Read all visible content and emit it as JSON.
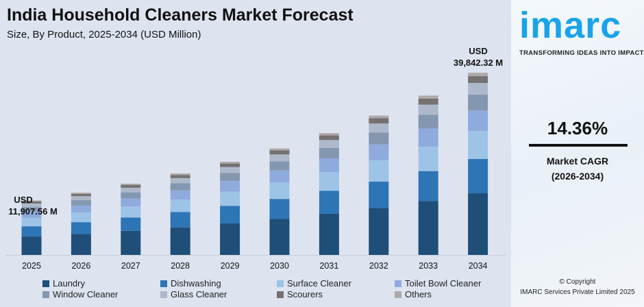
{
  "title": "India Household Cleaners Market Forecast",
  "subtitle": "Size, By Product, 2025-2034 (USD Million)",
  "brand": {
    "logo": "imarc",
    "tagline": "TRANSFORMING IDEAS INTO IMPACT"
  },
  "cagr": {
    "value": "14.36%",
    "label": "Market CAGR",
    "period": "(2026-2034)"
  },
  "copyright": {
    "line1": "© Copyright",
    "line2": "IMARC Services Private Limited 2025"
  },
  "annotations": {
    "first": {
      "line1": "USD",
      "line2": "11,907.56 M"
    },
    "last": {
      "line1": "USD",
      "line2": "39,842.32 M"
    }
  },
  "chart_data": {
    "type": "bar",
    "stacked": true,
    "categories": [
      "2025",
      "2026",
      "2027",
      "2028",
      "2029",
      "2030",
      "2031",
      "2032",
      "2033",
      "2034"
    ],
    "ylim": [
      0,
      40000
    ],
    "grid": false,
    "legend_position": "bottom",
    "series": [
      {
        "name": "Laundry",
        "color": "#1f4e79",
        "values": [
          4025,
          4603,
          5264,
          6020,
          6884,
          7873,
          9004,
          10296,
          11775,
          13480
        ]
      },
      {
        "name": "Dishwashing",
        "color": "#2e75b6",
        "values": [
          2239,
          2560,
          2928,
          3348,
          3829,
          4379,
          5008,
          5727,
          6550,
          7490
        ]
      },
      {
        "name": "Surface Cleaner",
        "color": "#9dc3e6",
        "values": [
          1834,
          2097,
          2398,
          2743,
          3137,
          3587,
          4102,
          4691,
          5365,
          6140
        ]
      },
      {
        "name": "Toilet Bowl Cleaner",
        "color": "#8faadc",
        "values": [
          1346,
          1539,
          1760,
          2013,
          2302,
          2632,
          3010,
          3442,
          3937,
          4490
        ]
      },
      {
        "name": "Window Cleaner",
        "color": "#8497b0",
        "values": [
          1024,
          1171,
          1339,
          1532,
          1752,
          2003,
          2291,
          2620,
          2996,
          3445
        ]
      },
      {
        "name": "Glass Cleaner",
        "color": "#adb9ca",
        "values": [
          762,
          871,
          997,
          1140,
          1304,
          1491,
          1705,
          1950,
          2230,
          2545
        ]
      },
      {
        "name": "Scourers",
        "color": "#767171",
        "values": [
          452,
          517,
          592,
          677,
          774,
          885,
          1012,
          1158,
          1324,
          1500
        ]
      },
      {
        "name": "Others",
        "color": "#aeaaaa",
        "values": [
          226,
          259,
          296,
          338,
          387,
          443,
          506,
          579,
          662,
          750
        ]
      }
    ]
  }
}
